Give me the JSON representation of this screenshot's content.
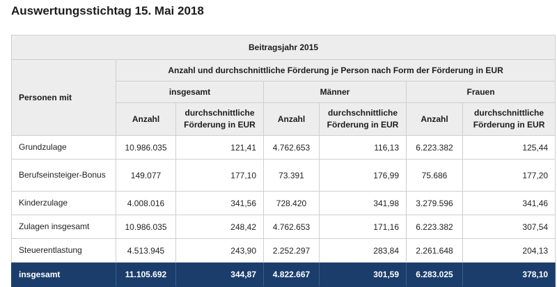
{
  "title": "Auswertungsstichtag 15. Mai 2018",
  "table": {
    "year_header": "Beitragsjahr 2015",
    "persons_header": "Personen mit",
    "description_header": "Anzahl und durchschnittliche Förderung je Person nach Form der Förderung in EUR",
    "groups": [
      "insgesamt",
      "Männer",
      "Frauen"
    ],
    "col_count_label": "Anzahl",
    "col_avg_label": "durchschnittliche Förderung in EUR",
    "rows": [
      {
        "label": "Grundzulage",
        "values": [
          "10.986.035",
          "121,41",
          "4.762.653",
          "116,13",
          "6.223.382",
          "125,44"
        ]
      },
      {
        "label": "Berufseinsteiger-Bonus",
        "values": [
          "149.077",
          "177,10",
          "73.391",
          "176,99",
          "75.686",
          "177,20"
        ]
      },
      {
        "label": "Kinderzulage",
        "values": [
          "4.008.016",
          "341,56",
          "728.420",
          "341,98",
          "3.279.596",
          "341,46"
        ]
      },
      {
        "label": "Zulagen insgesamt",
        "values": [
          "10.986.035",
          "248,42",
          "4.762.653",
          "171,16",
          "6.223.382",
          "307,54"
        ]
      },
      {
        "label": "Steuerentlastung",
        "values": [
          "4.513.945",
          "243,90",
          "2.252.297",
          "283,84",
          "2.261.648",
          "204,13"
        ]
      }
    ],
    "total": {
      "label": "insgesamt",
      "values": [
        "11.105.692",
        "344,87",
        "4.822.667",
        "301,59",
        "6.283.025",
        "378,10"
      ]
    }
  },
  "colors": {
    "header_bg": "#ededed",
    "total_bg": "#1b3d6b",
    "border": "#cfcfcf"
  }
}
